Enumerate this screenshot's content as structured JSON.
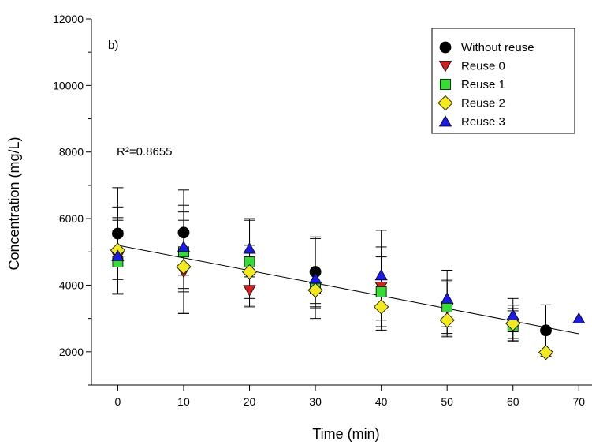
{
  "chart_data": {
    "type": "scatter",
    "panel_label": "b)",
    "annotation": "R²=0.8655",
    "xlabel": "Time (min)",
    "ylabel": "Concentration (mg/L)",
    "xlim": [
      -4,
      72
    ],
    "ylim": [
      1000,
      12000
    ],
    "xticks": [
      0,
      10,
      20,
      30,
      40,
      50,
      60,
      70
    ],
    "yticks": [
      2000,
      4000,
      6000,
      8000,
      10000,
      12000
    ],
    "grid": false,
    "legend_position": "top-right",
    "trendline": {
      "x": [
        0,
        70
      ],
      "y": [
        5200,
        2540
      ]
    },
    "series": [
      {
        "name": "Without reuse",
        "marker": "circle",
        "color": "#000000",
        "points": [
          {
            "x": 0,
            "y": 5550,
            "err": 1380
          },
          {
            "x": 10,
            "y": 5580,
            "err": 1280
          },
          {
            "x": 30,
            "y": 4400,
            "err": 1050
          },
          {
            "x": 65,
            "y": 2640,
            "err": 770
          }
        ]
      },
      {
        "name": "Reuse 0",
        "marker": "triangle-down",
        "color": "#d62020",
        "points": [
          {
            "x": 0,
            "y": 4850,
            "err": 1100
          },
          {
            "x": 10,
            "y": 4400,
            "err": 1250
          },
          {
            "x": 20,
            "y": 3850,
            "err": 500
          },
          {
            "x": 30,
            "y": 3950,
            "err": 500
          },
          {
            "x": 40,
            "y": 3950,
            "err": 1200
          },
          {
            "x": 50,
            "y": 3300,
            "err": 800
          },
          {
            "x": 60,
            "y": 2850,
            "err": 450
          }
        ]
      },
      {
        "name": "Reuse 1",
        "marker": "square",
        "color": "#33dd33",
        "points": [
          {
            "x": 0,
            "y": 4700,
            "err": 950
          },
          {
            "x": 10,
            "y": 5000,
            "err": 1200
          },
          {
            "x": 20,
            "y": 4700,
            "err": 1300
          },
          {
            "x": 30,
            "y": 3900,
            "err": 550
          },
          {
            "x": 40,
            "y": 3800,
            "err": 1050
          },
          {
            "x": 50,
            "y": 3350,
            "err": 800
          },
          {
            "x": 60,
            "y": 2780,
            "err": 450
          }
        ]
      },
      {
        "name": "Reuse 2",
        "marker": "diamond",
        "color": "#f2ea1a",
        "points": [
          {
            "x": 0,
            "y": 5050,
            "err": 1300
          },
          {
            "x": 10,
            "y": 4550,
            "err": 1400
          },
          {
            "x": 20,
            "y": 4400,
            "err": 800
          },
          {
            "x": 30,
            "y": 3850,
            "err": 550
          },
          {
            "x": 40,
            "y": 3350,
            "err": 700
          },
          {
            "x": 50,
            "y": 2950,
            "err": 500
          },
          {
            "x": 60,
            "y": 2850,
            "err": 550
          },
          {
            "x": 65,
            "y": 1980,
            "err": 0
          }
        ]
      },
      {
        "name": "Reuse 3",
        "marker": "triangle-up",
        "color": "#1a1aee",
        "points": [
          {
            "x": 0,
            "y": 4880,
            "err": 1150
          },
          {
            "x": 10,
            "y": 5150,
            "err": 1250
          },
          {
            "x": 20,
            "y": 5100,
            "err": 850
          },
          {
            "x": 30,
            "y": 4200,
            "err": 1200
          },
          {
            "x": 40,
            "y": 4300,
            "err": 1350
          },
          {
            "x": 50,
            "y": 3600,
            "err": 850
          },
          {
            "x": 60,
            "y": 3100,
            "err": 500
          },
          {
            "x": 70,
            "y": 3000,
            "err": 0
          }
        ]
      }
    ]
  }
}
